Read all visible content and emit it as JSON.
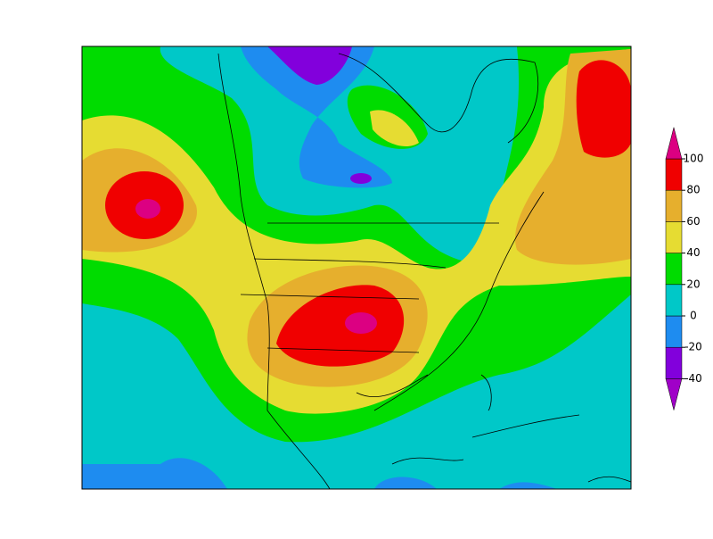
{
  "colorbar": {
    "levels": [
      -40,
      -20,
      0,
      20,
      40,
      60,
      80,
      100
    ],
    "colors": [
      "#a000c8",
      "#8200dc",
      "#1e8cf0",
      "#00c8c8",
      "#00dc00",
      "#e6dc32",
      "#e6af2d",
      "#f00000",
      "#dc0082"
    ]
  }
}
